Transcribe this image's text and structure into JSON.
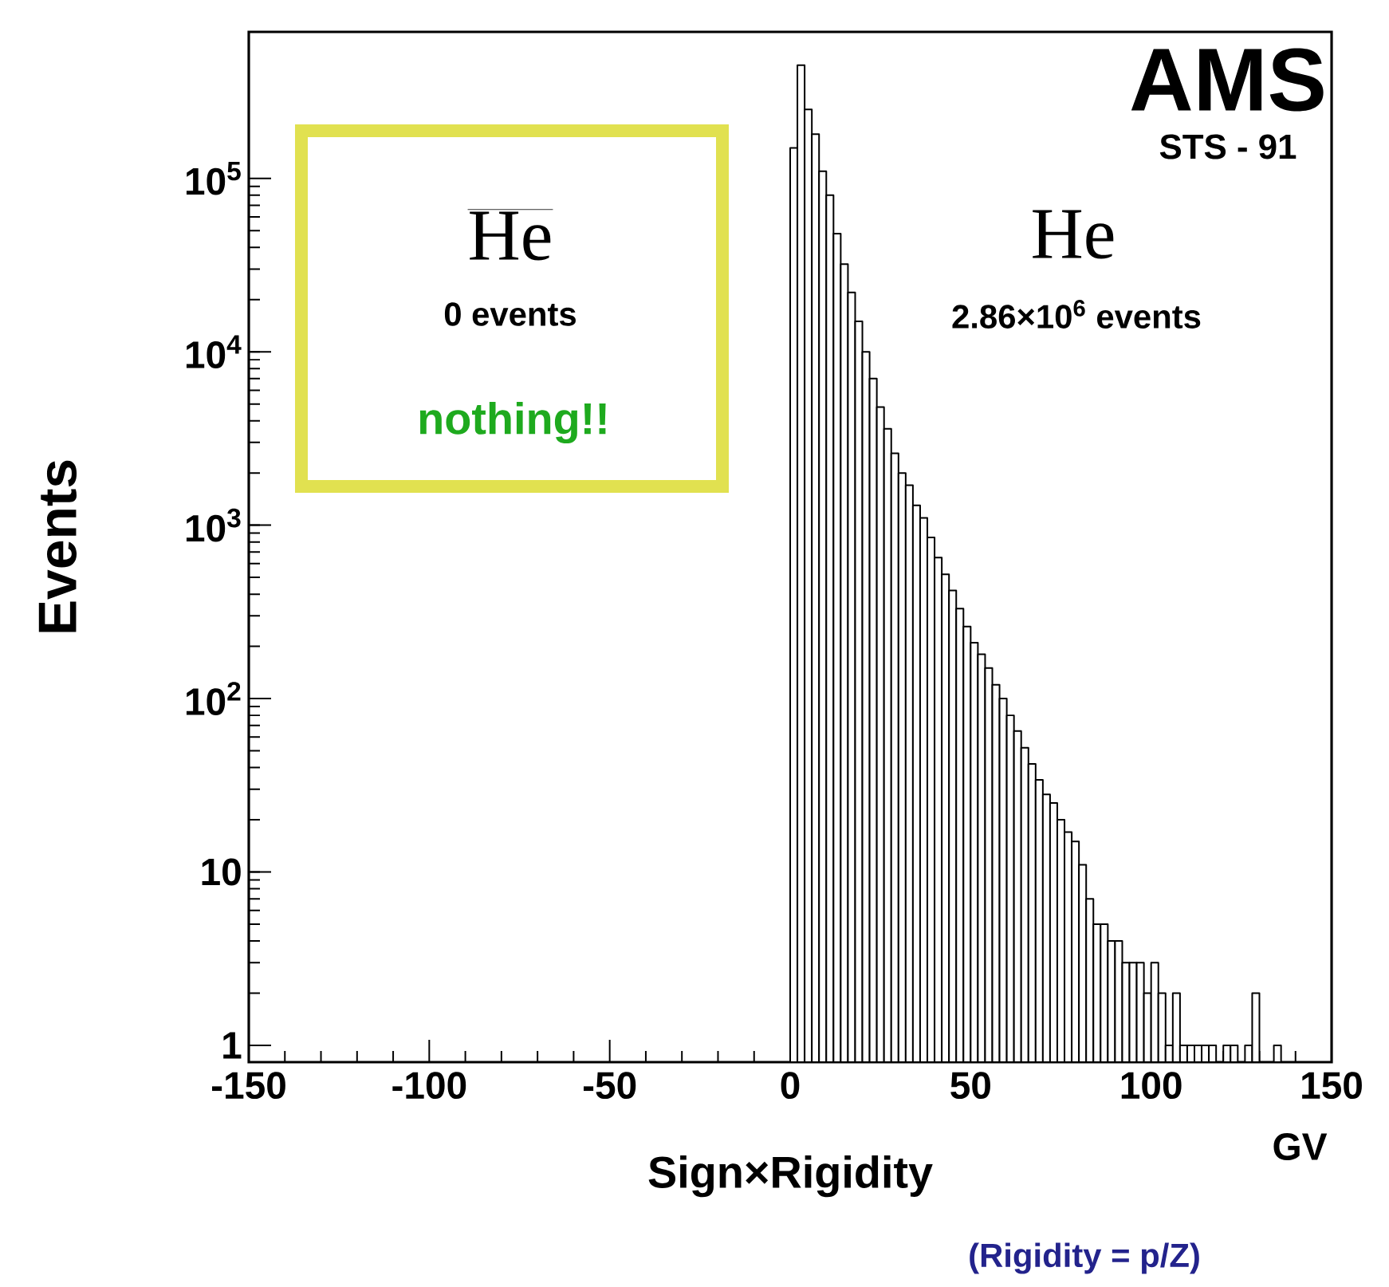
{
  "chart_data": {
    "type": "histogram",
    "color": "#000000",
    "xlabel": "Sign×Rigidity",
    "ylabel": "Events",
    "bins": [
      0,
      2,
      4,
      6,
      8,
      10,
      12,
      14,
      16,
      18,
      20,
      22,
      24,
      26,
      28,
      30,
      32,
      34,
      36,
      38,
      40,
      42,
      44,
      46,
      48,
      50,
      52,
      54,
      56,
      58,
      60,
      62,
      64,
      66,
      68,
      70,
      72,
      74,
      76,
      78,
      80,
      82,
      84,
      86,
      88,
      90,
      92,
      94,
      96,
      98,
      100,
      102,
      104,
      106,
      108,
      110,
      112,
      114,
      116,
      118,
      120,
      122,
      124,
      126,
      128,
      130,
      132,
      134,
      136
    ],
    "values": [
      150000,
      450000,
      250000,
      180000,
      110000,
      80000,
      48000,
      32000,
      22000,
      15000,
      10000,
      7000,
      4800,
      3600,
      2600,
      2000,
      1700,
      1300,
      1100,
      850,
      650,
      520,
      420,
      330,
      260,
      210,
      180,
      150,
      120,
      100,
      80,
      65,
      52,
      42,
      34,
      28,
      25,
      20,
      17,
      15,
      11,
      7,
      5,
      5,
      4,
      4,
      3,
      3,
      3,
      2,
      3,
      2,
      1,
      2,
      1,
      1,
      1,
      1,
      1,
      null,
      1,
      1,
      null,
      1,
      2,
      null,
      null,
      1
    ],
    "xlim": [
      -150,
      150
    ],
    "ylim": [
      0.8,
      700000
    ],
    "log": "y",
    "xticks": [
      -150,
      -100,
      -50,
      0,
      50,
      100,
      150
    ],
    "yticks": [
      1,
      10,
      {
        "value": 100,
        "label": "10$^{2}$"
      },
      {
        "value": 1000,
        "label": "10$^{3}$"
      },
      {
        "value": 10000,
        "label": "10$^{4}$"
      },
      {
        "value": 100000,
        "label": "10$^{5}$"
      }
    ],
    "annotations": [
      "AMS",
      "STS - 91",
      "He",
      "0 events",
      "nothing!!",
      "He",
      "2.86×10$^{6}$ events",
      "GV",
      "(Rigidity = p/Z)"
    ]
  }
}
